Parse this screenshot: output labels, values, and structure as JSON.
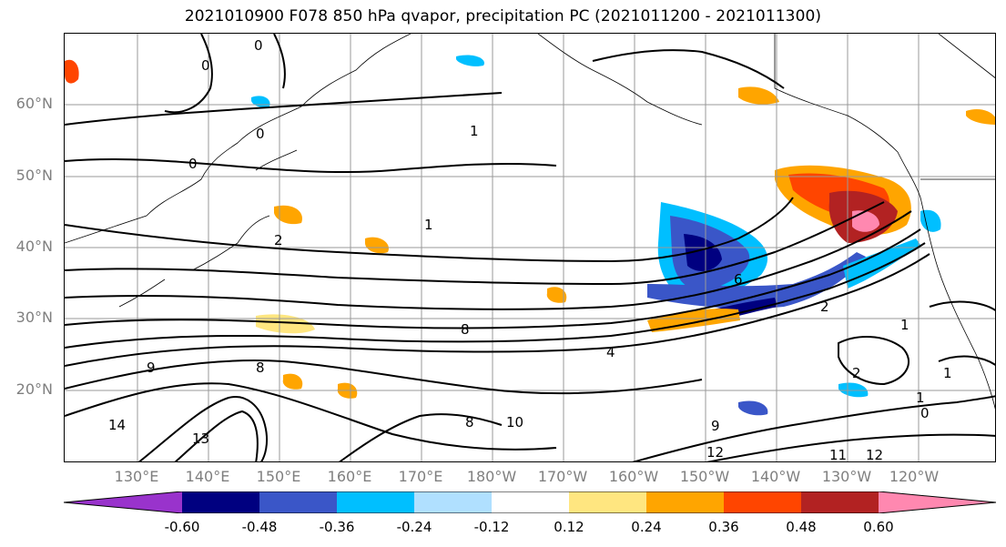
{
  "title": "2021010900 F078 850 hPa qvapor, precipitation PC (2021011200 - 2021011300)",
  "lat_labels": [
    "60°N",
    "50°N",
    "40°N",
    "30°N",
    "20°N"
  ],
  "lon_labels": [
    "130°E",
    "140°E",
    "150°E",
    "160°E",
    "170°E",
    "180°W",
    "170°W",
    "160°W",
    "150°W",
    "140°W",
    "130°W",
    "120°W"
  ],
  "colorbar": {
    "colors": [
      "#9933cc",
      "#000080",
      "#3a56c8",
      "#00bfff",
      "#b0e0ff",
      "#ffffff",
      "#ffe680",
      "#ffa500",
      "#ff4500",
      "#b22222",
      "#ff88b0"
    ],
    "tick_labels": [
      "-0.60",
      "-0.48",
      "-0.36",
      "-0.24",
      "-0.12",
      "0.12",
      "0.24",
      "0.36",
      "0.48",
      "0.60"
    ]
  },
  "contour_labels": [
    "0",
    "0",
    "0",
    "0",
    "1",
    "1",
    "2",
    "6",
    "8",
    "8",
    "9",
    "10",
    "12",
    "13",
    "14",
    "12",
    "11",
    "9",
    "8",
    "1",
    "0",
    "1",
    "2",
    "1",
    "2",
    "4"
  ]
}
